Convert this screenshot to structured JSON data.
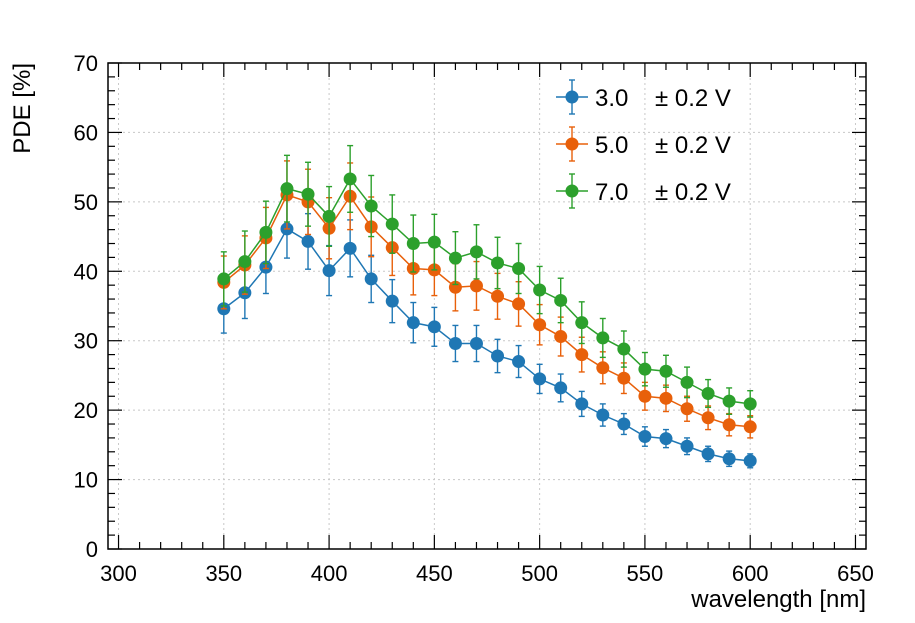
{
  "chart_data": {
    "type": "scatter",
    "xlabel": "wavelength [nm]",
    "ylabel": "PDE [%]",
    "xlim": [
      295,
      655
    ],
    "ylim": [
      0,
      70
    ],
    "xticks": [
      300,
      350,
      400,
      450,
      500,
      550,
      600,
      650
    ],
    "yticks": [
      0,
      10,
      20,
      30,
      40,
      50,
      60,
      70
    ],
    "grid": true,
    "legend_position": "top-right",
    "x": [
      350,
      360,
      370,
      380,
      390,
      400,
      410,
      420,
      430,
      440,
      450,
      460,
      470,
      480,
      490,
      500,
      510,
      520,
      530,
      540,
      550,
      560,
      570,
      580,
      590,
      600
    ],
    "series": [
      {
        "name": "3.0",
        "name_suffix": "± 0.2 V",
        "color": "#1f77b4",
        "values": [
          34.6,
          36.9,
          40.6,
          46.1,
          44.3,
          40.1,
          43.3,
          38.9,
          35.7,
          32.6,
          32.0,
          29.6,
          29.6,
          27.8,
          27.0,
          24.5,
          23.2,
          20.9,
          19.3,
          18.0,
          16.2,
          15.9,
          14.8,
          13.7,
          13.0,
          12.7
        ],
        "errors": [
          3.5,
          3.7,
          3.8,
          4.2,
          4.0,
          3.6,
          4.1,
          3.4,
          3.1,
          2.9,
          2.8,
          2.6,
          2.6,
          2.4,
          2.3,
          2.1,
          2.0,
          1.8,
          1.6,
          1.5,
          1.4,
          1.3,
          1.2,
          1.1,
          1.1,
          1.0
        ]
      },
      {
        "name": "5.0",
        "name_suffix": "± 0.2 V",
        "color": "#e8600a",
        "values": [
          38.4,
          40.9,
          44.8,
          51.0,
          50.0,
          46.2,
          50.8,
          46.4,
          43.4,
          40.4,
          40.2,
          37.7,
          37.9,
          36.4,
          35.3,
          32.3,
          30.6,
          28.0,
          26.1,
          24.6,
          22.0,
          21.7,
          20.2,
          18.9,
          17.9,
          17.6
        ],
        "errors": [
          3.8,
          4.2,
          4.4,
          4.9,
          4.7,
          4.4,
          4.8,
          4.3,
          4.0,
          3.8,
          3.7,
          3.4,
          3.5,
          3.3,
          3.2,
          2.9,
          2.8,
          2.5,
          2.3,
          2.2,
          2.0,
          1.9,
          1.8,
          1.7,
          1.6,
          1.6
        ]
      },
      {
        "name": "7.0",
        "name_suffix": "± 0.2 V",
        "color": "#2ca02c",
        "values": [
          38.9,
          41.4,
          45.6,
          51.9,
          51.1,
          47.9,
          53.3,
          49.4,
          46.8,
          44.0,
          44.2,
          41.9,
          42.8,
          41.2,
          40.4,
          37.3,
          35.8,
          32.6,
          30.4,
          28.8,
          25.9,
          25.6,
          24.0,
          22.4,
          21.3,
          20.9
        ],
        "errors": [
          3.9,
          4.4,
          4.5,
          4.8,
          4.6,
          4.3,
          4.8,
          4.4,
          4.2,
          4.1,
          4.0,
          3.8,
          3.9,
          3.7,
          3.6,
          3.4,
          3.2,
          3.0,
          2.8,
          2.6,
          2.4,
          2.3,
          2.2,
          2.0,
          1.9,
          1.9
        ]
      }
    ]
  }
}
